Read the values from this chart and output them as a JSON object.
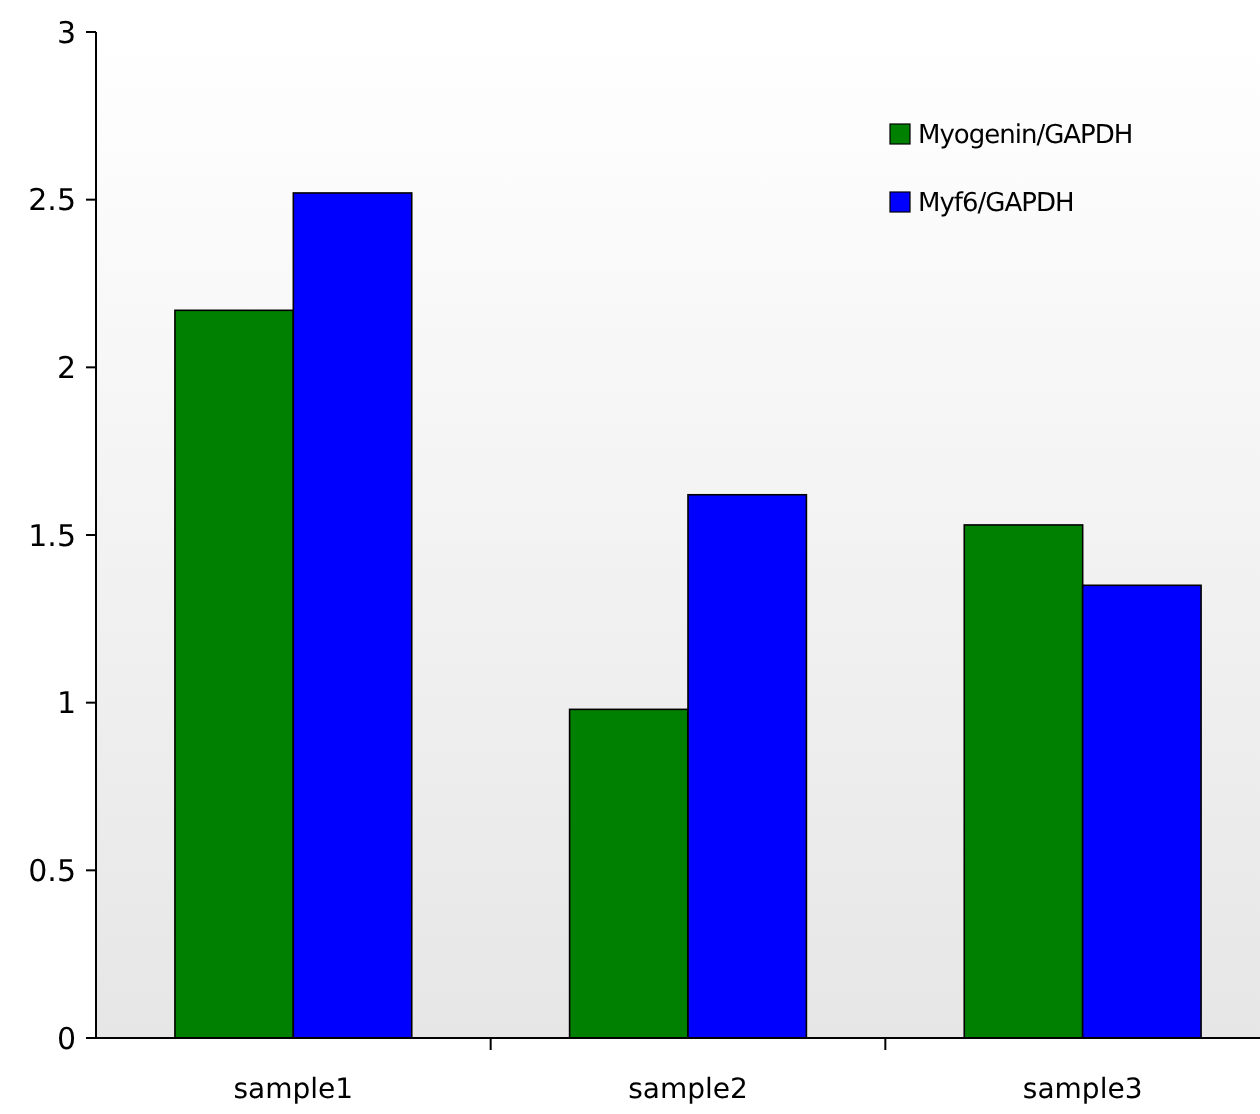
{
  "chart_data": {
    "type": "bar",
    "categories": [
      "sample1",
      "sample2",
      "sample3"
    ],
    "series": [
      {
        "name": "Myogenin/GAPDH",
        "color": "#008000",
        "values": [
          2.17,
          0.98,
          1.53
        ]
      },
      {
        "name": "Myf6/GAPDH",
        "color": "#0000ff",
        "values": [
          2.52,
          1.62,
          1.35
        ]
      }
    ],
    "ylim": [
      0,
      3
    ],
    "yticks": [
      0,
      0.5,
      1,
      1.5,
      2,
      2.5,
      3
    ],
    "grid": false,
    "legend": "top right"
  }
}
